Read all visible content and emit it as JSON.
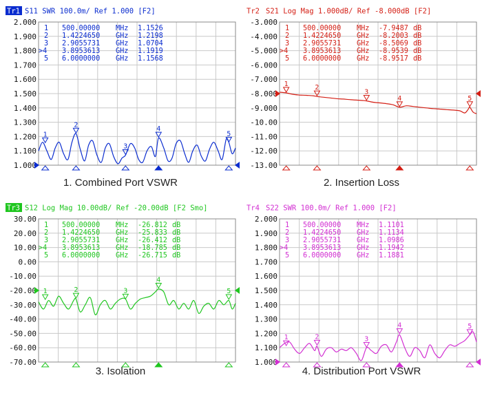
{
  "chart_data": [
    {
      "type": "line",
      "caption": "1. Combined Port VSWR",
      "trace_label": "Tr1",
      "trace_label_style": "box",
      "header": "S11  SWR 100.0m/ Ref 1.000 [F2]",
      "color": "#0a2ccf",
      "ylim": [
        1.0,
        2.0
      ],
      "yticks": [
        "2.000",
        "1.900",
        "1.800",
        "1.700",
        "1.600",
        "1.500",
        "1.400",
        "1.300",
        "1.200",
        "1.100",
        "1.000"
      ],
      "ref_value": 1.0,
      "xlim_mhz": [
        300,
        6200
      ],
      "marker_table": [
        {
          "no": "1",
          "freq": "500.00000",
          "unit": "MHz",
          "value": "1.1526",
          "db": ""
        },
        {
          "no": "2",
          "freq": "1.4224650",
          "unit": "GHz",
          "value": "1.2198",
          "db": ""
        },
        {
          "no": "3",
          "freq": "2.9055731",
          "unit": "GHz",
          "value": "1.0704",
          "db": ""
        },
        {
          "no": ">4",
          "freq": "3.8953613",
          "unit": "GHz",
          "value": "1.1919",
          "db": ""
        },
        {
          "no": "5",
          "freq": "6.0000000",
          "unit": "GHz",
          "value": "1.1568",
          "db": ""
        }
      ],
      "markers": [
        {
          "label": "1",
          "x_mhz": 500,
          "y": 1.1526
        },
        {
          "label": "2",
          "x_mhz": 1422.465,
          "y": 1.2198
        },
        {
          "label": "3",
          "x_mhz": 2905.5731,
          "y": 1.0704
        },
        {
          "label": "4",
          "x_mhz": 3895.3613,
          "y": 1.1919
        },
        {
          "label": "5",
          "x_mhz": 6000,
          "y": 1.1568
        }
      ],
      "series": [
        {
          "name": "S11 SWR",
          "x_mhz": [
            300,
            420,
            550,
            680,
            800,
            920,
            1050,
            1180,
            1300,
            1422,
            1550,
            1680,
            1800,
            1920,
            2050,
            2180,
            2300,
            2420,
            2550,
            2680,
            2800,
            2905,
            3050,
            3180,
            3300,
            3420,
            3550,
            3680,
            3800,
            3895,
            4050,
            4180,
            4300,
            4420,
            4550,
            4680,
            4800,
            4920,
            5050,
            5180,
            5300,
            5420,
            5550,
            5680,
            5800,
            5920,
            6000,
            6100,
            6200
          ],
          "y": [
            1.1,
            1.16,
            1.1,
            1.04,
            1.12,
            1.16,
            1.08,
            1.04,
            1.16,
            1.22,
            1.11,
            1.03,
            1.14,
            1.17,
            1.07,
            1.02,
            1.12,
            1.15,
            1.06,
            1.01,
            1.05,
            1.07,
            1.15,
            1.12,
            1.04,
            1.02,
            1.1,
            1.13,
            1.06,
            1.19,
            1.12,
            1.03,
            1.05,
            1.15,
            1.17,
            1.08,
            1.02,
            1.1,
            1.14,
            1.06,
            1.03,
            1.11,
            1.16,
            1.1,
            1.04,
            1.18,
            1.16,
            1.08,
            1.12
          ]
        }
      ]
    },
    {
      "type": "line",
      "caption": "2. Insertion Loss",
      "trace_label": "Tr2",
      "trace_label_style": "plain",
      "header": "S21 Log Mag 1.000dB/ Ref -8.000dB [F2]",
      "color": "#d41e14",
      "ylim": [
        -13.0,
        -3.0
      ],
      "yticks": [
        "-3.000",
        "-4.000",
        "-5.000",
        "-6.000",
        "-7.000",
        "-8.000",
        "-9.000",
        "-10.00",
        "-11.00",
        "-12.00",
        "-13.00"
      ],
      "ref_value": -8.0,
      "xlim_mhz": [
        300,
        6200
      ],
      "marker_table": [
        {
          "no": "1",
          "freq": "500.00000",
          "unit": "MHz",
          "value": "-7.9487",
          "db": "dB"
        },
        {
          "no": "2",
          "freq": "1.4224650",
          "unit": "GHz",
          "value": "-8.2003",
          "db": "dB"
        },
        {
          "no": "3",
          "freq": "2.9055731",
          "unit": "GHz",
          "value": "-8.5069",
          "db": "dB"
        },
        {
          "no": ">4",
          "freq": "3.8953613",
          "unit": "GHz",
          "value": "-8.9539",
          "db": "dB"
        },
        {
          "no": "5",
          "freq": "6.0000000",
          "unit": "GHz",
          "value": "-8.9517",
          "db": "dB"
        }
      ],
      "markers": [
        {
          "label": "1",
          "x_mhz": 500,
          "y": -7.9487
        },
        {
          "label": "2",
          "x_mhz": 1422.465,
          "y": -8.2003
        },
        {
          "label": "3",
          "x_mhz": 2905.5731,
          "y": -8.5069
        },
        {
          "label": "4",
          "x_mhz": 3895.3613,
          "y": -8.9539
        },
        {
          "label": "5",
          "x_mhz": 6000,
          "y": -8.9517
        }
      ],
      "series": [
        {
          "name": "S21 Log Mag",
          "x_mhz": [
            300,
            500,
            700,
            900,
            1100,
            1300,
            1422,
            1600,
            1800,
            2000,
            2200,
            2400,
            2600,
            2800,
            2905,
            3100,
            3300,
            3500,
            3700,
            3895,
            4100,
            4300,
            4500,
            4700,
            4900,
            5100,
            5300,
            5500,
            5700,
            5850,
            5950,
            6000,
            6100,
            6200
          ],
          "y": [
            -7.9,
            -7.95,
            -8.05,
            -8.1,
            -8.12,
            -8.15,
            -8.2,
            -8.25,
            -8.3,
            -8.35,
            -8.38,
            -8.42,
            -8.45,
            -8.48,
            -8.51,
            -8.6,
            -8.65,
            -8.7,
            -8.78,
            -8.95,
            -8.85,
            -8.9,
            -8.95,
            -9.0,
            -9.05,
            -9.08,
            -9.12,
            -9.15,
            -9.2,
            -9.35,
            -9.1,
            -8.95,
            -9.3,
            -9.4
          ]
        }
      ]
    },
    {
      "type": "line",
      "caption": "3. Isolation",
      "trace_label": "Tr3",
      "trace_label_style": "box",
      "header": "S12 Log Mag 10.00dB/ Ref -20.00dB [F2 Smo]",
      "color": "#1fc61f",
      "ylim": [
        -70.0,
        30.0
      ],
      "yticks": [
        "30.00",
        "20.00",
        "10.00",
        "0.00",
        "-10.00",
        "-20.00",
        "-30.00",
        "-40.00",
        "-50.00",
        "-60.00",
        "-70.00"
      ],
      "ref_value": -20.0,
      "xlim_mhz": [
        300,
        6200
      ],
      "marker_table": [
        {
          "no": "1",
          "freq": "500.00000",
          "unit": "MHz",
          "value": "-26.812",
          "db": "dB"
        },
        {
          "no": "2",
          "freq": "1.4224650",
          "unit": "GHz",
          "value": "-25.833",
          "db": "dB"
        },
        {
          "no": "3",
          "freq": "2.9055731",
          "unit": "GHz",
          "value": "-26.412",
          "db": "dB"
        },
        {
          "no": ">4",
          "freq": "3.8953613",
          "unit": "GHz",
          "value": "-18.785",
          "db": "dB"
        },
        {
          "no": "5",
          "freq": "6.0000000",
          "unit": "GHz",
          "value": "-26.715",
          "db": "dB"
        }
      ],
      "markers": [
        {
          "label": "1",
          "x_mhz": 500,
          "y": -26.812
        },
        {
          "label": "2",
          "x_mhz": 1422.465,
          "y": -25.833
        },
        {
          "label": "3",
          "x_mhz": 2905.5731,
          "y": -26.412
        },
        {
          "label": "4",
          "x_mhz": 3895.3613,
          "y": -18.785
        },
        {
          "label": "5",
          "x_mhz": 6000,
          "y": -26.715
        }
      ],
      "series": [
        {
          "name": "S12 Log Mag",
          "x_mhz": [
            300,
            450,
            600,
            750,
            900,
            1050,
            1200,
            1350,
            1422,
            1550,
            1700,
            1850,
            2000,
            2150,
            2300,
            2450,
            2600,
            2750,
            2905,
            3050,
            3200,
            3350,
            3500,
            3650,
            3800,
            3895,
            4050,
            4200,
            4350,
            4500,
            4650,
            4800,
            4950,
            5100,
            5250,
            5400,
            5550,
            5700,
            5850,
            6000,
            6100,
            6200
          ],
          "y": [
            -28,
            -33,
            -27,
            -31,
            -24,
            -29,
            -33,
            -27,
            -26,
            -35,
            -30,
            -25,
            -37,
            -30,
            -27,
            -33,
            -29,
            -26,
            -26,
            -33,
            -29,
            -26,
            -25,
            -24,
            -21,
            -19,
            -21,
            -30,
            -27,
            -33,
            -29,
            -33,
            -27,
            -36,
            -31,
            -29,
            -33,
            -27,
            -30,
            -27,
            -33,
            -29
          ]
        }
      ]
    },
    {
      "type": "line",
      "caption": "4. Distribution  Port VSWR",
      "trace_label": "Tr4",
      "trace_label_style": "plain",
      "header": "S22 SWR 100.0m/ Ref 1.000 [F2]",
      "color": "#d22ed2",
      "ylim": [
        1.0,
        2.0
      ],
      "yticks": [
        "2.000",
        "1.900",
        "1.800",
        "1.700",
        "1.600",
        "1.500",
        "1.400",
        "1.300",
        "1.200",
        "1.100",
        "1.000"
      ],
      "ref_value": 1.0,
      "xlim_mhz": [
        300,
        6200
      ],
      "marker_table": [
        {
          "no": "1",
          "freq": "500.00000",
          "unit": "MHz",
          "value": "1.1101",
          "db": ""
        },
        {
          "no": "2",
          "freq": "1.4224650",
          "unit": "GHz",
          "value": "1.1134",
          "db": ""
        },
        {
          "no": "3",
          "freq": "2.9055731",
          "unit": "GHz",
          "value": "1.0986",
          "db": ""
        },
        {
          "no": ">4",
          "freq": "3.8953613",
          "unit": "GHz",
          "value": "1.1942",
          "db": ""
        },
        {
          "no": "5",
          "freq": "6.0000000",
          "unit": "GHz",
          "value": "1.1881",
          "db": ""
        }
      ],
      "markers": [
        {
          "label": "1",
          "x_mhz": 500,
          "y": 1.1101
        },
        {
          "label": "2",
          "x_mhz": 1422.465,
          "y": 1.1134
        },
        {
          "label": "3",
          "x_mhz": 2905.5731,
          "y": 1.0986
        },
        {
          "label": "4",
          "x_mhz": 3895.3613,
          "y": 1.1942
        },
        {
          "label": "5",
          "x_mhz": 6000,
          "y": 1.1881
        }
      ],
      "series": [
        {
          "name": "S22 SWR",
          "x_mhz": [
            300,
            450,
            600,
            750,
            900,
            1050,
            1200,
            1350,
            1422,
            1550,
            1700,
            1850,
            2000,
            2150,
            2300,
            2450,
            2600,
            2750,
            2905,
            3050,
            3200,
            3350,
            3500,
            3650,
            3800,
            3895,
            4050,
            4200,
            4350,
            4500,
            4650,
            4800,
            4950,
            5100,
            5250,
            5400,
            5550,
            5700,
            5850,
            6000,
            6100,
            6200
          ],
          "y": [
            1.1,
            1.13,
            1.14,
            1.09,
            1.06,
            1.1,
            1.13,
            1.08,
            1.11,
            1.04,
            1.09,
            1.1,
            1.07,
            1.09,
            1.08,
            1.1,
            1.06,
            1.01,
            1.1,
            1.08,
            1.06,
            1.11,
            1.12,
            1.07,
            1.14,
            1.19,
            1.1,
            1.04,
            1.1,
            1.08,
            1.03,
            1.12,
            1.06,
            1.03,
            1.08,
            1.12,
            1.11,
            1.13,
            1.15,
            1.19,
            1.21,
            1.14
          ]
        }
      ]
    }
  ]
}
